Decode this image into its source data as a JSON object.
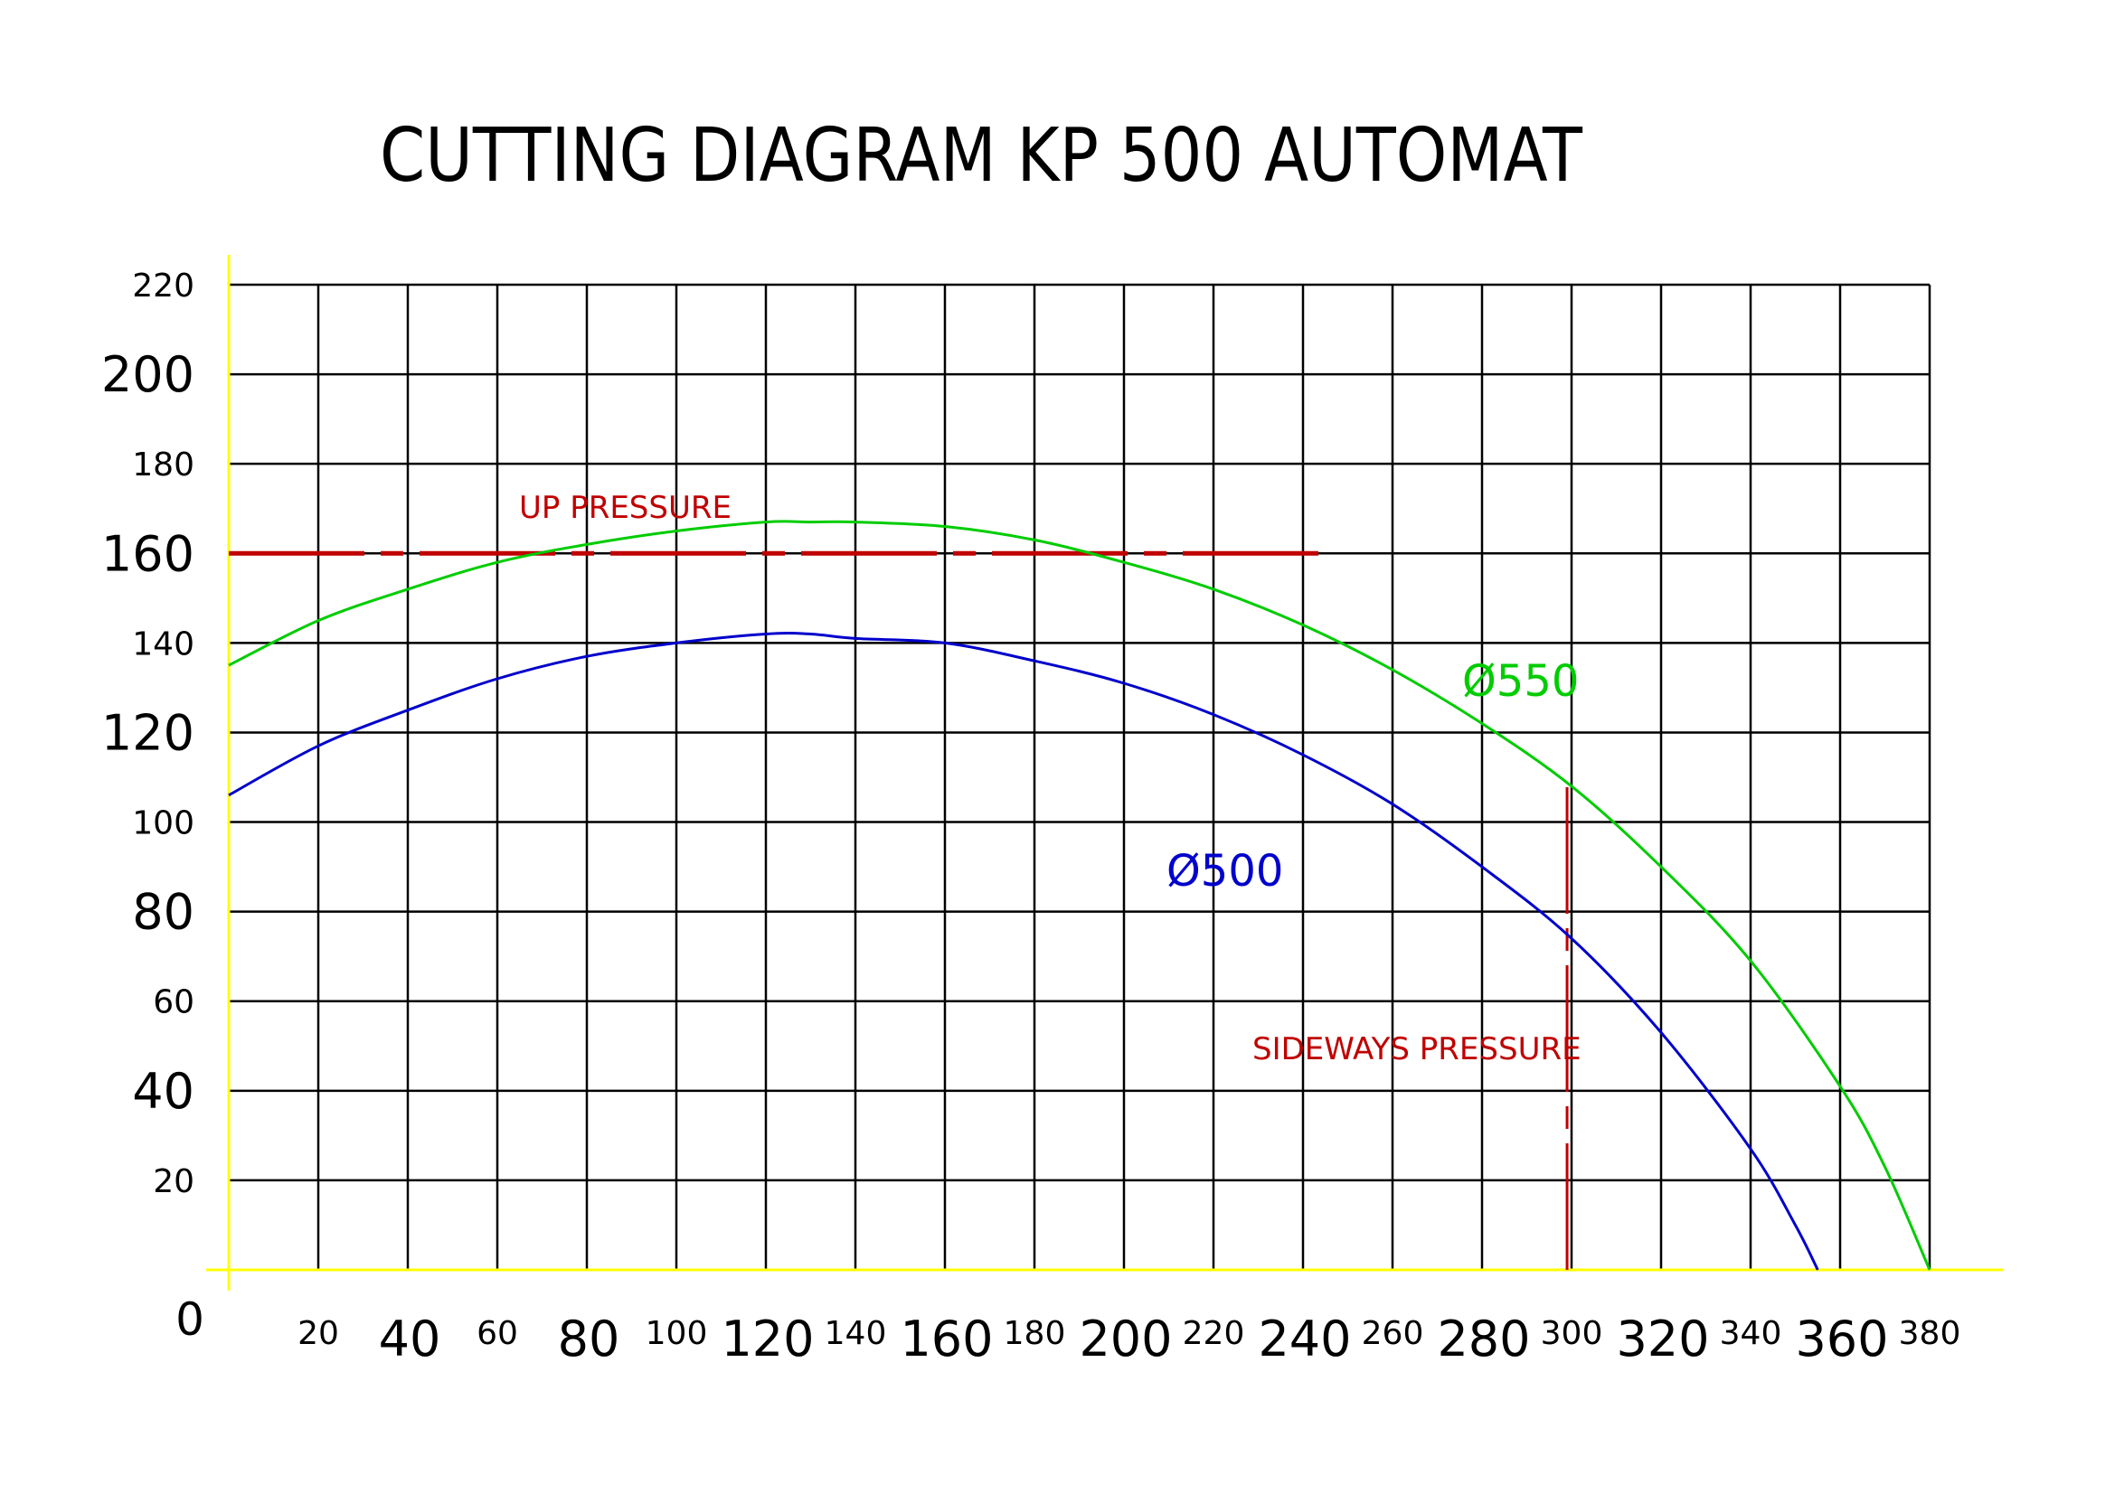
{
  "colors": {
    "background": "#ffffff",
    "grid": "#000000",
    "axis": "#ffff00",
    "pressure": "#c00000",
    "d500": "#0000cc",
    "d550": "#00cc00"
  },
  "chart_data": {
    "type": "line",
    "title": "CUTTING DIAGRAM  KP 500 AUTOMAT",
    "xlabel": "",
    "ylabel": "",
    "xlim": [
      0,
      380
    ],
    "ylim": [
      0,
      220
    ],
    "grid": true,
    "origin_label": "0",
    "x_ticks": [
      20,
      40,
      60,
      80,
      100,
      120,
      140,
      160,
      180,
      200,
      220,
      240,
      260,
      280,
      300,
      320,
      340,
      360,
      380
    ],
    "y_ticks": [
      20,
      40,
      60,
      80,
      100,
      120,
      140,
      160,
      180,
      200,
      220
    ],
    "series": [
      {
        "name": "Ø500",
        "color": "#0000cc",
        "x": [
          0,
          20,
          40,
          60,
          80,
          100,
          120,
          130,
          140,
          160,
          180,
          200,
          220,
          240,
          260,
          280,
          300,
          320,
          340,
          350,
          355
        ],
        "y": [
          106,
          117,
          125,
          132,
          137,
          140,
          142,
          142,
          141,
          140,
          136,
          131,
          124,
          115,
          104,
          90,
          74,
          53,
          27,
          10,
          0
        ]
      },
      {
        "name": "Ø550",
        "color": "#00cc00",
        "x": [
          0,
          20,
          40,
          60,
          80,
          100,
          120,
          130,
          140,
          160,
          180,
          200,
          220,
          240,
          260,
          280,
          300,
          320,
          340,
          360,
          370,
          380
        ],
        "y": [
          135,
          145,
          152,
          158,
          162,
          165,
          167,
          167,
          167,
          166,
          163,
          158,
          152,
          144,
          134,
          122,
          108,
          90,
          69,
          41,
          23,
          0
        ]
      }
    ],
    "reference_lines": [
      {
        "name": "UP PRESSURE",
        "orientation": "horizontal",
        "value": 160,
        "from": 0,
        "to": 247,
        "color": "#c00000"
      },
      {
        "name": "SIDEWAYS PRESSURE",
        "orientation": "vertical",
        "value": 299,
        "from": 0,
        "to": 109,
        "color": "#c00000"
      }
    ]
  }
}
